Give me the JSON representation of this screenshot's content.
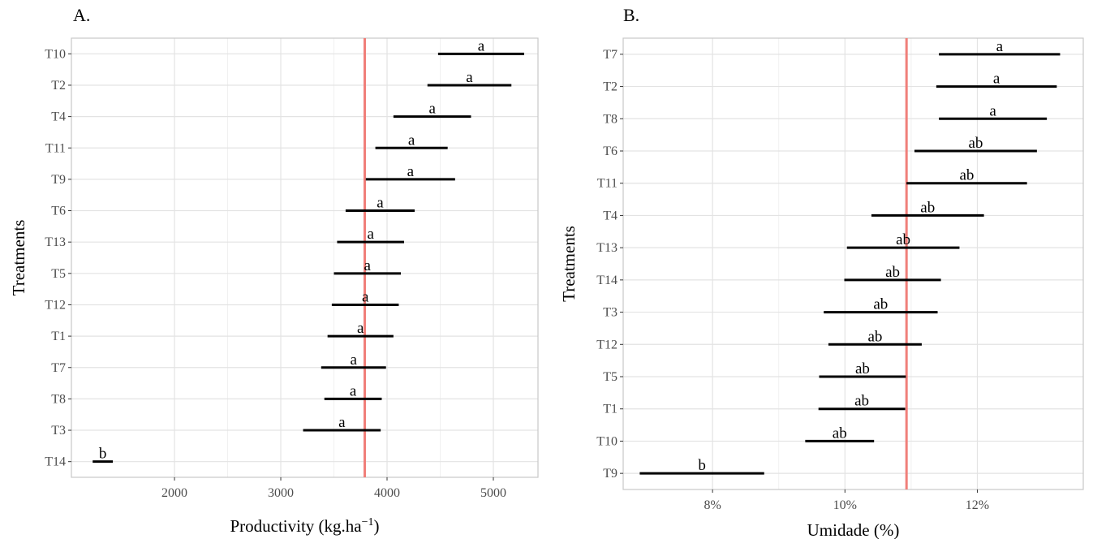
{
  "chart_data": [
    {
      "type": "interval",
      "panel_label": "A.",
      "xlabel": "Productivity",
      "xlabel_unit": "kg.ha",
      "xlabel_exp": "−1",
      "ylabel": "Treatments",
      "xlim": [
        1030,
        5420
      ],
      "xticks": [
        2000,
        3000,
        4000,
        5000
      ],
      "xtick_labels": [
        "2000",
        "3000",
        "4000",
        "5000"
      ],
      "reference_line": 3790,
      "reference_color": "#F07F7A",
      "categories": [
        "T10",
        "T2",
        "T4",
        "T11",
        "T9",
        "T6",
        "T13",
        "T5",
        "T12",
        "T1",
        "T7",
        "T8",
        "T3",
        "T14"
      ],
      "low": [
        4480,
        4380,
        4060,
        3890,
        3800,
        3610,
        3530,
        3500,
        3480,
        3440,
        3380,
        3410,
        3210,
        1230
      ],
      "high": [
        5290,
        5170,
        4790,
        4570,
        4640,
        4260,
        4160,
        4130,
        4110,
        4060,
        3990,
        3950,
        3940,
        1420
      ],
      "group_letters": [
        "a",
        "a",
        "a",
        "a",
        "a",
        "a",
        "a",
        "a",
        "a",
        "a",
        "a",
        "a",
        "a",
        "b"
      ],
      "grid": true
    },
    {
      "type": "interval",
      "panel_label": "B.",
      "xlabel": "Umidade (%)",
      "ylabel": "Treatments",
      "xlim": [
        6.65,
        13.6
      ],
      "xticks": [
        8,
        10,
        12
      ],
      "xtick_labels": [
        "8%",
        "10%",
        "12%"
      ],
      "reference_line": 10.93,
      "reference_color": "#F07F7A",
      "categories": [
        "T7",
        "T2",
        "T8",
        "T6",
        "T11",
        "T4",
        "T13",
        "T14",
        "T3",
        "T12",
        "T5",
        "T1",
        "T10",
        "T9"
      ],
      "low": [
        11.42,
        11.38,
        11.42,
        11.05,
        10.93,
        10.4,
        10.03,
        9.99,
        9.68,
        9.75,
        9.61,
        9.6,
        9.4,
        6.9
      ],
      "high": [
        13.25,
        13.2,
        13.05,
        12.9,
        12.75,
        12.1,
        11.73,
        11.45,
        11.4,
        11.16,
        10.92,
        10.91,
        10.44,
        8.78
      ],
      "group_letters": [
        "a",
        "a",
        "a",
        "ab",
        "ab",
        "ab",
        "ab",
        "ab",
        "ab",
        "ab",
        "ab",
        "ab",
        "ab",
        "b"
      ],
      "grid": true
    }
  ]
}
